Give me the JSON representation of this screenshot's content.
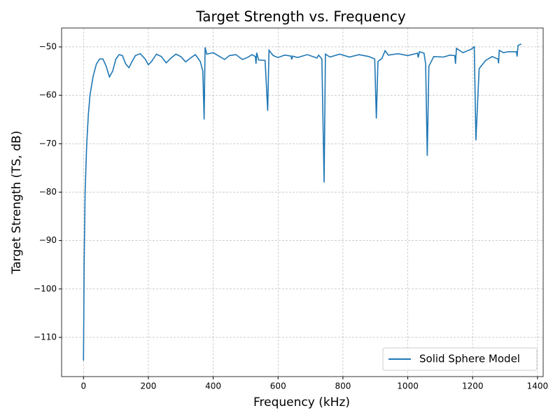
{
  "chart_data": {
    "type": "line",
    "title": "Target Strength vs. Frequency",
    "x_label": "Frequency (kHz)",
    "y_label": "Target Strength (TS, dB)",
    "x": [
      0,
      2,
      5,
      10,
      15,
      20,
      30,
      40,
      50,
      60,
      70,
      80,
      90,
      100,
      110,
      120,
      130,
      140,
      150,
      160,
      175,
      190,
      200,
      210,
      225,
      240,
      255,
      270,
      285,
      300,
      315,
      330,
      345,
      360,
      368,
      372,
      375,
      380,
      400,
      420,
      435,
      450,
      470,
      490,
      505,
      520,
      530,
      532,
      534,
      540,
      560,
      568,
      572,
      585,
      600,
      620,
      640,
      642,
      645,
      660,
      690,
      720,
      725,
      735,
      742,
      746,
      760,
      790,
      820,
      850,
      880,
      898,
      903,
      908,
      920,
      930,
      940,
      970,
      1000,
      1030,
      1032,
      1036,
      1050,
      1055,
      1060,
      1065,
      1080,
      1110,
      1130,
      1145,
      1147,
      1150,
      1170,
      1195,
      1205,
      1210,
      1220,
      1240,
      1260,
      1278,
      1280,
      1282,
      1295,
      1310,
      1335,
      1337,
      1340,
      1350
    ],
    "series": [
      {
        "name": "Solid Sphere Model",
        "color": "#1f77b4",
        "values": [
          -114.8,
          -95,
          -80,
          -70,
          -64,
          -60,
          -56,
          -53.5,
          -52.5,
          -52.5,
          -54,
          -56.2,
          -55,
          -52.5,
          -51.6,
          -51.8,
          -53.5,
          -54.3,
          -53,
          -51.8,
          -51.4,
          -52.5,
          -53.7,
          -53,
          -51.5,
          -52,
          -53.3,
          -52.3,
          -51.5,
          -52,
          -53.1,
          -52.3,
          -51.6,
          -53,
          -55,
          -65,
          -50.1,
          -51.5,
          -51.2,
          -52,
          -52.6,
          -51.8,
          -51.6,
          -52.6,
          -52.2,
          -51.6,
          -52,
          -53.5,
          -51.2,
          -52.7,
          -52.8,
          -63.2,
          -50.7,
          -51.8,
          -52.2,
          -51.7,
          -51.9,
          -52.6,
          -51.9,
          -52.2,
          -51.6,
          -52.3,
          -51.7,
          -52.5,
          -78,
          -51.5,
          -52.1,
          -51.5,
          -52.1,
          -51.6,
          -52,
          -52.5,
          -64.8,
          -53,
          -52.4,
          -50.8,
          -51.7,
          -51.4,
          -51.8,
          -51.3,
          -52.2,
          -51,
          -51.3,
          -53.5,
          -72.5,
          -54,
          -52,
          -52.1,
          -51.7,
          -51.8,
          -53.5,
          -50.3,
          -51.2,
          -50.5,
          -50,
          -69.3,
          -54.5,
          -52.8,
          -52,
          -52.5,
          -53.4,
          -50.7,
          -51.2,
          -51,
          -51,
          -52,
          -49.7,
          -49.4
        ]
      }
    ],
    "xlim": [
      -67.5,
      1417.5
    ],
    "ylim": [
      -118.1,
      -46.1
    ],
    "xticks": [
      0,
      200,
      400,
      600,
      800,
      1000,
      1200,
      1400
    ],
    "yticks": [
      {
        "value": -110,
        "label": "−110"
      },
      {
        "value": -100,
        "label": "−100"
      },
      {
        "value": -90,
        "label": "−90"
      },
      {
        "value": -80,
        "label": "−80"
      },
      {
        "value": -70,
        "label": "−70"
      },
      {
        "value": -60,
        "label": "−60"
      },
      {
        "value": -50,
        "label": "−50"
      }
    ],
    "grid": true,
    "legend": "lower right"
  }
}
